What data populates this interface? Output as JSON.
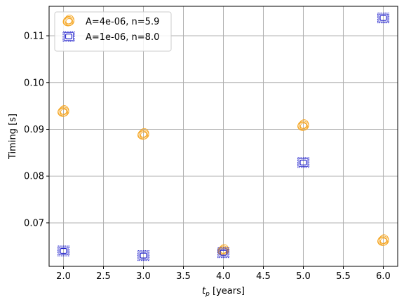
{
  "chart_data": {
    "type": "scatter",
    "title": "",
    "xlabel_main": "t",
    "xlabel_sub": "p",
    "xlabel_unit": " [years]",
    "ylabel": "Timing [s]",
    "xlim": [
      1.82,
      6.18
    ],
    "ylim": [
      0.0607,
      0.1163
    ],
    "xticks": [
      "2.0",
      "2.5",
      "3.0",
      "3.5",
      "4.0",
      "4.5",
      "5.0",
      "5.5",
      "6.0"
    ],
    "yticks": [
      "0.07",
      "0.08",
      "0.09",
      "0.10",
      "0.11"
    ],
    "grid": true,
    "legend_position": "top-left",
    "series": [
      {
        "name": "A=4e-06, n=5.9",
        "color": "#f5a623",
        "marker": "swirl-circle",
        "x": [
          2.0,
          3.0,
          4.0,
          5.0,
          6.0
        ],
        "y": [
          0.0938,
          0.0889,
          0.0641,
          0.0908,
          0.0662
        ]
      },
      {
        "name": "A=1e-06, n=8.0",
        "color": "#2222cc",
        "marker": "framed-square",
        "x": [
          2.0,
          3.0,
          4.0,
          5.0,
          6.0
        ],
        "y": [
          0.064,
          0.063,
          0.0636,
          0.0829,
          0.1138
        ]
      }
    ]
  }
}
